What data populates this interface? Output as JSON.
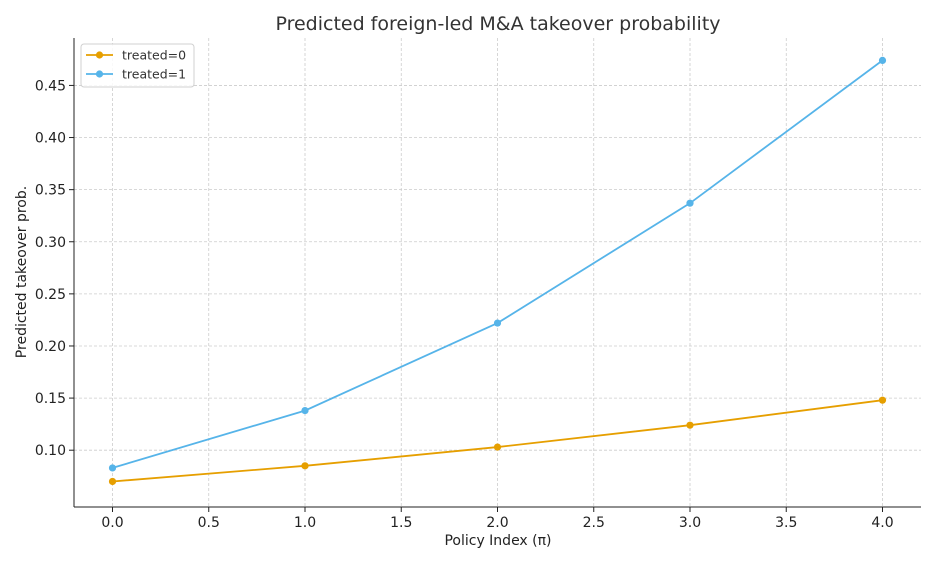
{
  "chart_data": {
    "type": "line",
    "title": "Predicted foreign-led M&A takeover probability",
    "xlabel": "Policy Index (π)",
    "ylabel": "Predicted takeover prob.",
    "x": [
      0,
      1,
      2,
      3,
      4
    ],
    "xlim": [
      -0.2,
      4.2
    ],
    "ylim": [
      0.0455,
      0.4955
    ],
    "xticks": [
      0.0,
      0.5,
      1.0,
      1.5,
      2.0,
      2.5,
      3.0,
      3.5,
      4.0
    ],
    "xtick_labels": [
      "0.0",
      "0.5",
      "1.0",
      "1.5",
      "2.0",
      "2.5",
      "3.0",
      "3.5",
      "4.0"
    ],
    "yticks": [
      0.1,
      0.15,
      0.2,
      0.25,
      0.3,
      0.35,
      0.4,
      0.45
    ],
    "ytick_labels": [
      "0.10",
      "0.15",
      "0.20",
      "0.25",
      "0.30",
      "0.35",
      "0.40",
      "0.45"
    ],
    "grid": true,
    "legend_position": "top-left",
    "series": [
      {
        "name": "treated=0",
        "color": "#E69F00",
        "values": [
          0.07,
          0.085,
          0.103,
          0.124,
          0.148
        ]
      },
      {
        "name": "treated=1",
        "color": "#56B4E9",
        "values": [
          0.083,
          0.138,
          0.222,
          0.337,
          0.474
        ]
      }
    ]
  }
}
